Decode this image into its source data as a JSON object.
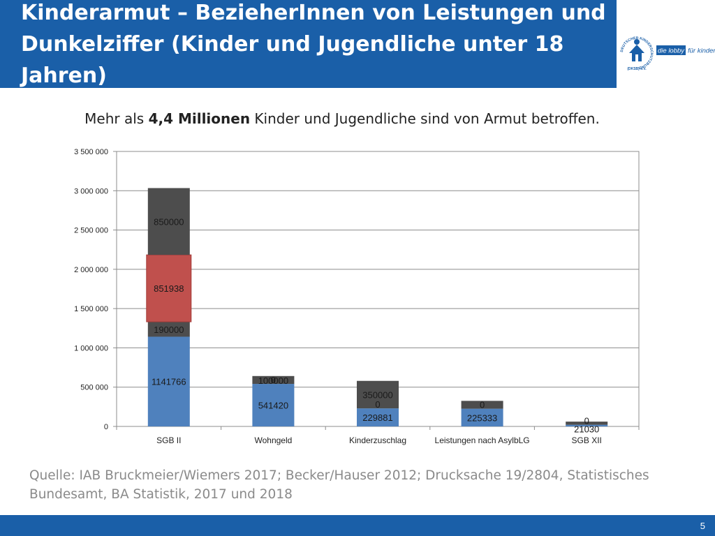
{
  "title": "Kinderarmut – BezieherInnen von Leistungen und Dunkelziffer (Kinder und Jugendliche unter 18 Jahren)",
  "logo": {
    "org_text": "DEUTSCHER KINDERSCHUTZBUND",
    "org_abbr": "(DKSB) e.V.",
    "slogan_part1": "die lobby",
    "slogan_part2": "für kinder"
  },
  "subtitle": {
    "before": "Mehr als ",
    "bold": "4,4 Millionen",
    "after": " Kinder und Jugendliche sind von Armut betroffen."
  },
  "source": "Quelle: IAB Bruckmeier/Wiemers 2017; Becker/Hauser 2012; Drucksache 19/2804, Statistisches Bundesamt, BA Statistik, 2017 und 2018",
  "page_number": "5",
  "colors": {
    "brand": "#1a5fa8",
    "blue": "#4f81bd",
    "red": "#c0504d",
    "grey": "#4d4d4d"
  },
  "chart_data": {
    "type": "bar",
    "stacked": true,
    "categories": [
      "SGB II",
      "Wohngeld",
      "Kinderzuschlag",
      "Leistungen nach AsylbLG",
      "SGB XII"
    ],
    "series": [
      {
        "name": "series-1",
        "color": "#4f81bd",
        "values": [
          1141766,
          541420,
          229881,
          225333,
          21030
        ],
        "labels": [
          "1141766",
          "541420",
          "229881",
          "225333",
          "21030"
        ]
      },
      {
        "name": "series-2",
        "color": "#4d4d4d",
        "values": [
          190000,
          0,
          0,
          0,
          0
        ],
        "labels": [
          "190000",
          "0",
          "0",
          "0",
          "0"
        ]
      },
      {
        "name": "series-3",
        "color": "#c0504d",
        "values": [
          851938,
          0,
          0,
          0,
          0
        ],
        "labels": [
          "851938",
          "",
          "",
          "",
          ""
        ]
      },
      {
        "name": "series-4",
        "color": "#4d4d4d",
        "values": [
          850000,
          100000,
          350000,
          100000,
          40000
        ],
        "labels": [
          "850000",
          "100000",
          "350000",
          "",
          ""
        ]
      }
    ],
    "yticks": [
      0,
      500000,
      1000000,
      1500000,
      2000000,
      2500000,
      3000000,
      3500000
    ],
    "ytick_labels": [
      "0",
      "500 000",
      "1 000 000",
      "1 500 000",
      "2 000 000",
      "2 500 000",
      "3 000 000",
      "3 500 000"
    ],
    "ylim": [
      0,
      3500000
    ],
    "grid": true,
    "legend": "none"
  }
}
